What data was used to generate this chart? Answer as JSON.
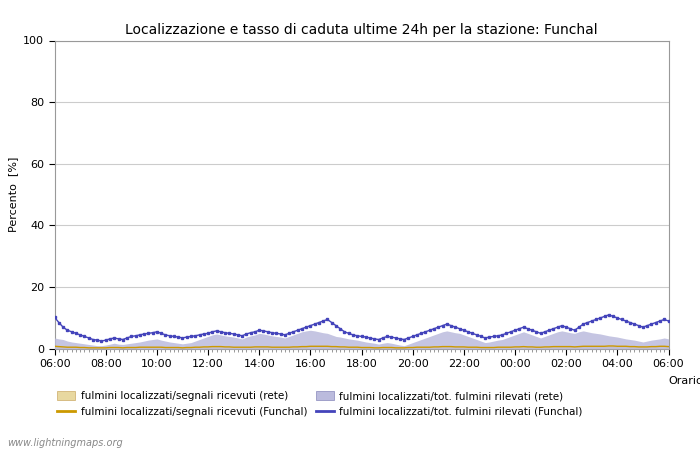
{
  "title": "Localizzazione e tasso di caduta ultime 24h per la stazione: Funchal",
  "ylabel": "Percento  [%]",
  "xlabel": "Orario",
  "ylim": [
    0,
    100
  ],
  "yticks": [
    0,
    20,
    40,
    60,
    80,
    100
  ],
  "background_color": "#ffffff",
  "plot_bg_color": "#ffffff",
  "watermark": "www.lightningmaps.org",
  "x_labels": [
    "06:00",
    "08:00",
    "10:00",
    "12:00",
    "14:00",
    "16:00",
    "18:00",
    "20:00",
    "22:00",
    "00:00",
    "02:00",
    "04:00",
    "06:00"
  ],
  "n_points": 145,
  "blue_line_color": "#4444bb",
  "orange_fill_color": "#e8d8a0",
  "orange_line_color": "#cc9900",
  "blue_fill_color": "#bbbbdd",
  "legend_labels": [
    "fulmini localizzati/segnali ricevuti (rete)",
    "fulmini localizzati/segnali ricevuti (Funchal)",
    "fulmini localizzati/tot. fulmini rilevati (rete)",
    "fulmini localizzati/tot. fulmini rilevati (Funchal)"
  ],
  "blue_line_data": [
    10.2,
    8.5,
    7.0,
    6.0,
    5.5,
    5.0,
    4.5,
    4.0,
    3.5,
    3.0,
    2.8,
    2.5,
    2.8,
    3.2,
    3.5,
    3.2,
    3.0,
    3.5,
    4.0,
    4.2,
    4.5,
    4.8,
    5.0,
    5.2,
    5.5,
    5.0,
    4.5,
    4.2,
    4.0,
    3.8,
    3.5,
    3.8,
    4.0,
    4.2,
    4.5,
    4.8,
    5.0,
    5.5,
    5.8,
    5.5,
    5.2,
    5.0,
    4.8,
    4.5,
    4.2,
    4.8,
    5.2,
    5.5,
    6.0,
    5.8,
    5.5,
    5.2,
    5.0,
    4.8,
    4.5,
    5.0,
    5.5,
    6.0,
    6.5,
    7.0,
    7.5,
    8.0,
    8.5,
    9.0,
    9.5,
    8.5,
    7.5,
    6.5,
    5.5,
    5.0,
    4.5,
    4.2,
    4.0,
    3.8,
    3.5,
    3.2,
    3.0,
    3.5,
    4.0,
    3.8,
    3.5,
    3.2,
    3.0,
    3.5,
    4.0,
    4.5,
    5.0,
    5.5,
    6.0,
    6.5,
    7.0,
    7.5,
    8.0,
    7.5,
    7.0,
    6.5,
    6.0,
    5.5,
    5.0,
    4.5,
    4.0,
    3.5,
    3.8,
    4.0,
    4.2,
    4.5,
    5.0,
    5.5,
    6.0,
    6.5,
    7.0,
    6.5,
    6.0,
    5.5,
    5.0,
    5.5,
    6.0,
    6.5,
    7.0,
    7.5,
    7.0,
    6.5,
    6.0,
    7.0,
    8.0,
    8.5,
    9.0,
    9.5,
    10.0,
    10.5,
    11.0,
    10.5,
    10.0,
    9.5,
    9.0,
    8.5,
    8.0,
    7.5,
    7.0,
    7.5,
    8.0,
    8.5,
    9.0,
    9.5,
    9.0
  ],
  "blue_fill_data": [
    3.5,
    3.2,
    3.0,
    2.5,
    2.2,
    2.0,
    1.8,
    1.6,
    1.4,
    1.2,
    1.0,
    1.0,
    1.2,
    1.5,
    1.8,
    1.5,
    1.4,
    1.6,
    1.8,
    2.0,
    2.2,
    2.5,
    2.8,
    3.0,
    3.2,
    2.8,
    2.5,
    2.2,
    2.0,
    1.8,
    1.6,
    1.8,
    2.0,
    2.5,
    3.0,
    3.5,
    4.0,
    4.5,
    4.8,
    4.5,
    4.2,
    4.0,
    3.8,
    3.5,
    3.2,
    3.8,
    4.2,
    4.5,
    5.0,
    4.8,
    4.5,
    4.2,
    4.0,
    3.8,
    3.5,
    4.0,
    4.5,
    5.0,
    5.5,
    5.8,
    6.0,
    5.8,
    5.5,
    5.2,
    5.0,
    4.5,
    4.0,
    3.8,
    3.5,
    3.2,
    3.0,
    2.8,
    2.5,
    2.2,
    2.0,
    1.8,
    1.5,
    1.8,
    2.0,
    1.8,
    1.5,
    1.2,
    1.0,
    1.5,
    2.0,
    2.5,
    3.0,
    3.5,
    4.0,
    4.5,
    5.0,
    5.5,
    5.8,
    5.5,
    5.2,
    5.0,
    4.5,
    4.0,
    3.5,
    3.0,
    2.5,
    2.0,
    2.2,
    2.5,
    2.8,
    3.0,
    3.5,
    4.0,
    4.5,
    5.0,
    5.5,
    5.0,
    4.5,
    4.0,
    3.5,
    4.0,
    4.5,
    5.0,
    5.5,
    5.8,
    5.5,
    5.2,
    5.0,
    5.5,
    5.8,
    5.5,
    5.2,
    5.0,
    4.8,
    4.5,
    4.2,
    4.0,
    3.8,
    3.5,
    3.2,
    3.0,
    2.8,
    2.5,
    2.2,
    2.5,
    2.8,
    3.0,
    3.2,
    3.5,
    3.2
  ],
  "orange_fill_data": [
    0.8,
    0.7,
    0.6,
    0.5,
    0.5,
    0.5,
    0.4,
    0.4,
    0.3,
    0.3,
    0.3,
    0.3,
    0.3,
    0.4,
    0.4,
    0.4,
    0.3,
    0.4,
    0.4,
    0.4,
    0.5,
    0.5,
    0.5,
    0.5,
    0.5,
    0.5,
    0.4,
    0.4,
    0.4,
    0.4,
    0.3,
    0.4,
    0.4,
    0.5,
    0.5,
    0.6,
    0.6,
    0.7,
    0.7,
    0.7,
    0.6,
    0.6,
    0.5,
    0.5,
    0.5,
    0.5,
    0.5,
    0.6,
    0.6,
    0.6,
    0.6,
    0.5,
    0.5,
    0.5,
    0.5,
    0.5,
    0.6,
    0.6,
    0.7,
    0.7,
    0.8,
    0.8,
    0.8,
    0.8,
    0.8,
    0.7,
    0.7,
    0.6,
    0.6,
    0.5,
    0.5,
    0.5,
    0.4,
    0.4,
    0.4,
    0.3,
    0.3,
    0.4,
    0.4,
    0.4,
    0.3,
    0.3,
    0.3,
    0.4,
    0.4,
    0.5,
    0.5,
    0.5,
    0.5,
    0.6,
    0.6,
    0.7,
    0.7,
    0.7,
    0.6,
    0.6,
    0.6,
    0.5,
    0.5,
    0.5,
    0.4,
    0.4,
    0.4,
    0.4,
    0.5,
    0.5,
    0.5,
    0.5,
    0.6,
    0.6,
    0.7,
    0.6,
    0.6,
    0.5,
    0.5,
    0.6,
    0.6,
    0.7,
    0.7,
    0.7,
    0.7,
    0.7,
    0.6,
    0.7,
    0.8,
    0.8,
    0.8,
    0.8,
    0.8,
    0.8,
    0.9,
    0.9,
    0.8,
    0.8,
    0.8,
    0.7,
    0.7,
    0.6,
    0.6,
    0.6,
    0.7,
    0.7,
    0.8,
    0.8,
    0.7
  ],
  "orange_line_data": [
    0.8,
    0.7,
    0.6,
    0.5,
    0.5,
    0.5,
    0.4,
    0.4,
    0.3,
    0.3,
    0.3,
    0.3,
    0.3,
    0.4,
    0.4,
    0.4,
    0.3,
    0.4,
    0.4,
    0.4,
    0.5,
    0.5,
    0.5,
    0.5,
    0.5,
    0.5,
    0.4,
    0.4,
    0.4,
    0.4,
    0.3,
    0.4,
    0.4,
    0.5,
    0.5,
    0.6,
    0.6,
    0.7,
    0.7,
    0.7,
    0.6,
    0.6,
    0.5,
    0.5,
    0.5,
    0.5,
    0.5,
    0.6,
    0.6,
    0.6,
    0.6,
    0.5,
    0.5,
    0.5,
    0.5,
    0.5,
    0.6,
    0.6,
    0.7,
    0.7,
    0.8,
    0.8,
    0.8,
    0.8,
    0.8,
    0.7,
    0.7,
    0.6,
    0.6,
    0.5,
    0.5,
    0.5,
    0.4,
    0.4,
    0.4,
    0.3,
    0.3,
    0.4,
    0.4,
    0.4,
    0.3,
    0.3,
    0.3,
    0.4,
    0.4,
    0.5,
    0.5,
    0.5,
    0.5,
    0.6,
    0.6,
    0.7,
    0.7,
    0.7,
    0.6,
    0.6,
    0.6,
    0.5,
    0.5,
    0.5,
    0.4,
    0.4,
    0.4,
    0.4,
    0.5,
    0.5,
    0.5,
    0.5,
    0.6,
    0.6,
    0.7,
    0.6,
    0.6,
    0.5,
    0.5,
    0.6,
    0.6,
    0.7,
    0.7,
    0.7,
    0.7,
    0.7,
    0.6,
    0.7,
    0.8,
    0.8,
    0.8,
    0.8,
    0.8,
    0.8,
    0.9,
    0.9,
    0.8,
    0.8,
    0.8,
    0.7,
    0.7,
    0.6,
    0.6,
    0.6,
    0.7,
    0.7,
    0.8,
    0.8,
    0.7
  ],
  "title_fontsize": 10,
  "axis_fontsize": 8,
  "tick_fontsize": 8,
  "watermark_fontsize": 7
}
